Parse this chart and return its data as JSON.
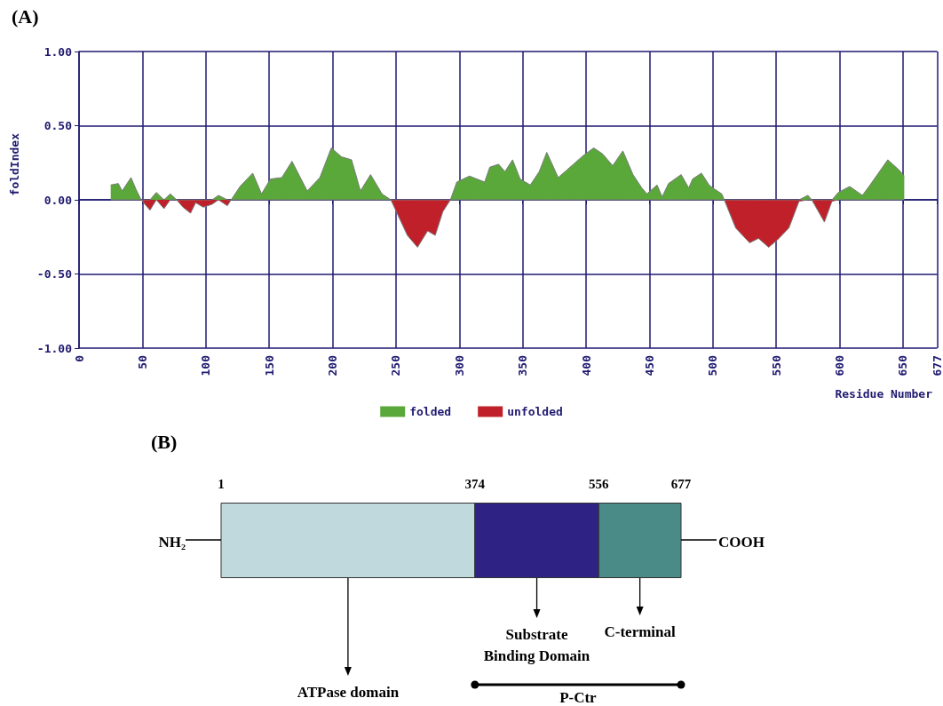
{
  "chart_data": [
    {
      "type": "area",
      "title": "(A)",
      "xlabel": "Residue Number",
      "ylabel": "foldIndex",
      "x": [
        25,
        31,
        34,
        41,
        45,
        49,
        56,
        61,
        67,
        72,
        77,
        82,
        88,
        92,
        98,
        105,
        110,
        117,
        120,
        127,
        137,
        144,
        151,
        160,
        168,
        180,
        190,
        199,
        207,
        215,
        222,
        230,
        239,
        246,
        259,
        267,
        275,
        281,
        287,
        293,
        298,
        308,
        320,
        324,
        331,
        336,
        342,
        348,
        356,
        363,
        369,
        378,
        390,
        398,
        406,
        413,
        421,
        429,
        437,
        444,
        448,
        456,
        460,
        465,
        475,
        481,
        484,
        491,
        497,
        500,
        507,
        509,
        518,
        529,
        536,
        544,
        551,
        560,
        568,
        575,
        578,
        588,
        594,
        599,
        608,
        618,
        624,
        638,
        647,
        651
      ],
      "series": [
        {
          "name": "folded",
          "color": "#5aa83a",
          "values": [
            0.1,
            0.11,
            0.06,
            0.15,
            0.07,
            0,
            0,
            0.05,
            0,
            0.04,
            0,
            0,
            0,
            0,
            0,
            0,
            0.03,
            0,
            0,
            0.09,
            0.18,
            0.04,
            0.14,
            0.15,
            0.26,
            0.06,
            0.15,
            0.35,
            0.29,
            0.27,
            0.06,
            0.17,
            0.04,
            0,
            0,
            0,
            0,
            0,
            0,
            0,
            0.12,
            0.16,
            0.12,
            0.22,
            0.24,
            0.19,
            0.27,
            0.14,
            0.1,
            0.19,
            0.32,
            0.15,
            0.24,
            0.3,
            0.35,
            0.31,
            0.23,
            0.33,
            0.17,
            0.08,
            0.04,
            0.1,
            0.02,
            0.11,
            0.17,
            0.08,
            0.14,
            0.18,
            0.1,
            0.08,
            0.04,
            0,
            0,
            0,
            0,
            0,
            0,
            0,
            0,
            0.03,
            0,
            0,
            0,
            0.05,
            0.09,
            0.03,
            0.1,
            0.27,
            0.2,
            0.16
          ]
        },
        {
          "name": "unfolded",
          "color": "#c0202a",
          "values": [
            0,
            0,
            0,
            0,
            0,
            0,
            -0.07,
            0,
            -0.06,
            0,
            0,
            -0.05,
            -0.09,
            -0.02,
            -0.05,
            -0.03,
            0,
            -0.04,
            0,
            0,
            0,
            0,
            0,
            0,
            0,
            0,
            0,
            0,
            0,
            0,
            0,
            0,
            0,
            0,
            -0.24,
            -0.32,
            -0.21,
            -0.24,
            -0.08,
            0,
            0,
            0,
            0,
            0,
            0,
            0,
            0,
            0,
            0,
            0,
            0,
            0,
            0,
            0,
            0,
            0,
            0,
            0,
            0,
            0,
            0,
            0,
            0,
            0,
            0,
            0,
            0,
            0,
            0,
            0,
            0,
            0,
            -0.19,
            -0.29,
            -0.26,
            -0.32,
            -0.27,
            -0.19,
            -0.01,
            0,
            0,
            -0.15,
            -0.01,
            0,
            0,
            0,
            0,
            0,
            0,
            0
          ]
        }
      ],
      "xlim": [
        0,
        677
      ],
      "xticks": [
        0,
        50,
        100,
        150,
        200,
        250,
        300,
        350,
        400,
        450,
        500,
        550,
        600,
        650,
        677
      ],
      "ylim": [
        -1,
        1
      ],
      "yticks": [
        {
          "value": -1,
          "label": "-1.00"
        },
        {
          "value": -0.5,
          "label": "-0.50"
        },
        {
          "value": 0,
          "label": "0.00"
        },
        {
          "value": 0.5,
          "label": "0.50"
        },
        {
          "value": 1,
          "label": "1.00"
        }
      ],
      "grid": true,
      "legend": "bottom"
    },
    {
      "type": "bar",
      "orientation": "horizontal",
      "title": "(B)",
      "categories": [
        null
      ],
      "series": [
        {
          "color": "#bfd9dd",
          "values": [
            373
          ],
          "base": [
            1
          ]
        },
        {
          "color": "#2e2384",
          "values": [
            182
          ],
          "base": [
            374
          ]
        },
        {
          "color": "#4a8a87",
          "values": [
            121
          ],
          "base": [
            556
          ]
        }
      ],
      "xlim": [
        1,
        677
      ],
      "xticks": [
        1,
        374,
        556,
        677
      ],
      "tick_labels": "x",
      "annotations": [
        "NH₂",
        "COOH",
        "ATPase domain",
        "Substrate Binding Domain",
        "C-terminal",
        "P-Ctr"
      ]
    }
  ]
}
